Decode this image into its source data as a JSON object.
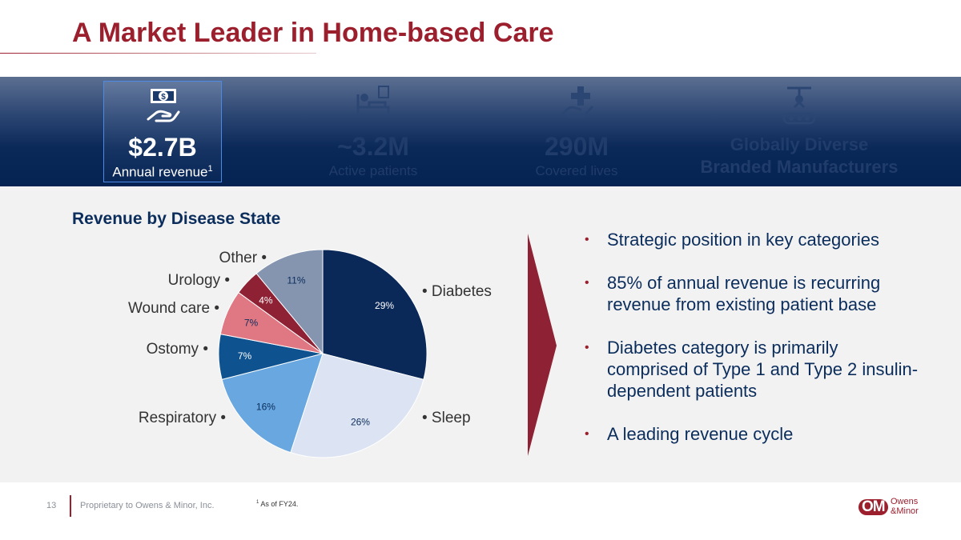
{
  "slide": {
    "title": "A Market Leader in Home-based Care"
  },
  "stats": [
    {
      "value": "$2.7B",
      "label": "Annual revenue",
      "sup": "1",
      "icon": "money-hand-icon"
    },
    {
      "value": "~3.2M",
      "label": "Active patients",
      "icon": "patient-bed-icon"
    },
    {
      "value": "290M",
      "label": "Covered lives",
      "icon": "medical-cross-hand-icon"
    },
    {
      "value_line1": "Globally Diverse",
      "value_line2": "Branded Manufacturers",
      "icon": "manufacturing-robot-icon"
    }
  ],
  "section": {
    "title": "Revenue by Disease State"
  },
  "chart_data": {
    "type": "pie",
    "title": "Revenue by Disease State",
    "slices": [
      {
        "label": "Diabetes",
        "value": 29,
        "display": "29%",
        "color": "#0a2858"
      },
      {
        "label": "Sleep",
        "value": 26,
        "display": "26%",
        "color": "#dce3f2"
      },
      {
        "label": "Respiratory",
        "value": 16,
        "display": "16%",
        "color": "#69a7e0"
      },
      {
        "label": "Ostomy",
        "value": 7,
        "display": "7%",
        "color": "#0e5290"
      },
      {
        "label": "Wound care",
        "value": 7,
        "display": "7%",
        "color": "#df7883"
      },
      {
        "label": "Urology",
        "value": 4,
        "display": "4%",
        "color": "#8e2133"
      },
      {
        "label": "Other",
        "value": 11,
        "display": "11%",
        "color": "#8595b0"
      }
    ]
  },
  "bullets": [
    "Strategic position in key categories",
    "85% of annual revenue is recurring revenue from existing patient base",
    "Diabetes category is primarily comprised of Type 1 and Type 2 insulin-dependent patients",
    "A leading revenue cycle"
  ],
  "footer": {
    "page_number": "13",
    "proprietary": "Proprietary to Owens & Minor, Inc.",
    "footnote_mark": "1",
    "footnote_text": " As of FY24.",
    "logo_mark": "OM",
    "logo_line1": "Owens",
    "logo_line2": "&Minor"
  },
  "colors": {
    "brand_red": "#9c1f2e",
    "navy": "#0b2d5c"
  }
}
